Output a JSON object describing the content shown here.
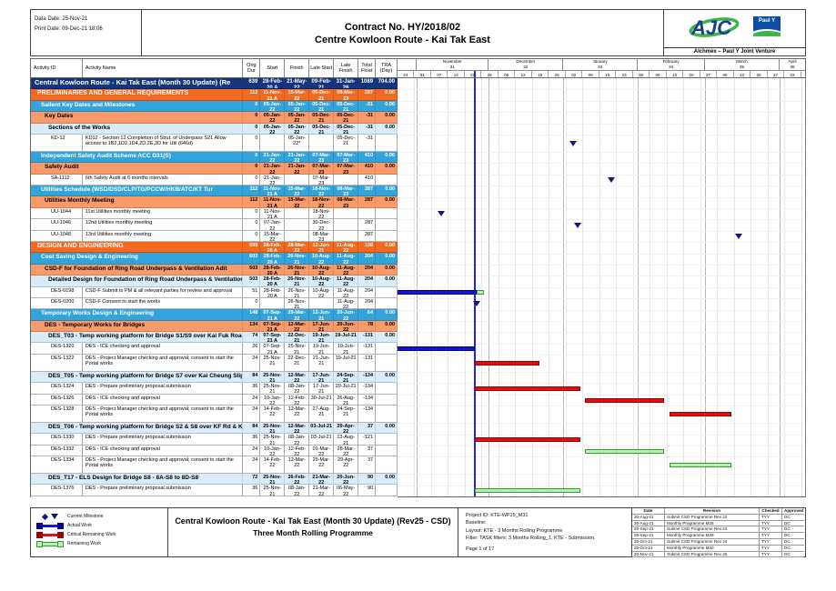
{
  "header": {
    "data_date": "Data Date: 25-Nov-21",
    "print_date": "Print Date: 09-Dec-21 18:06",
    "title1": "Contract No. HY/2018/02",
    "title2": "Centre Kowloon Route - Kai Tak East",
    "logo": {
      "alchmex": "AJC",
      "pauly": "Paul Y",
      "caption": "Alchmex – Paul Y Joint Venture"
    }
  },
  "table": {
    "columns": [
      "Activity ID",
      "Activity Name",
      "Orig Dur",
      "Start",
      "Finish",
      "Late Start",
      "Late Finish",
      "Total Float",
      "TRA (Day)"
    ],
    "rows": [
      {
        "level": "project",
        "id": "",
        "name": "Central Kowloon Route - Kai Tak East (Month 30 Update) (Re",
        "dur": "639",
        "start": "28-Feb-20 A",
        "finish": "21-May-22",
        "late_start": "09-Feb-21",
        "late_finish": "31-Jan-26",
        "float": "1089",
        "tra": "704.00"
      },
      {
        "level": "l1",
        "id": "",
        "name": "PRELIMINARIES AND GENERAL REQUIREMENTS",
        "dur": "112",
        "start": "11-Nov-21 A",
        "finish": "15-Mar-22",
        "late_start": "05-Dec-21",
        "late_finish": "08-Mar-23",
        "float": "287",
        "tra": "0.00"
      },
      {
        "level": "l2",
        "id": "",
        "name": "Salient Key Dates and Milestones",
        "dur": "0",
        "start": "05-Jan-22",
        "finish": "05-Jan-22",
        "late_start": "05-Dec-21",
        "late_finish": "05-Dec-21",
        "float": "-31",
        "tra": "0.00"
      },
      {
        "level": "l3",
        "id": "",
        "name": "Key Dates",
        "dur": "0",
        "start": "05-Jan-22",
        "finish": "05-Jan-22",
        "late_start": "05-Dec-21",
        "late_finish": "05-Dec-21",
        "float": "-31",
        "tra": "0.00"
      },
      {
        "level": "l4",
        "id": "",
        "name": "Sections of the Works",
        "dur": "0",
        "start": "05-Jan-22",
        "finish": "05-Jan-22",
        "late_start": "05-Dec-21",
        "late_finish": "05-Dec-21",
        "float": "-31",
        "tra": "0.00"
      },
      {
        "level": "task",
        "tall": true,
        "id": "KD-12",
        "name": "KD12 - Section 12 Completion of Strut. of Underpass S21 Allow access to 1B2,1D2,1D4,2D,2E,3D for Util (646d)",
        "dur": "0",
        "start": "",
        "finish": "05-Jan-22*",
        "late_start": "",
        "late_finish": "05-Dec-21",
        "float": "-31",
        "tra": ""
      },
      {
        "level": "l2",
        "id": "",
        "name": "Independent Safety Audit Scheme ACC D31(S)",
        "dur": "0",
        "start": "21-Jan-22",
        "finish": "21-Jan-22",
        "late_start": "07-Mar-23",
        "late_finish": "07-Mar-23",
        "float": "410",
        "tra": "0.00"
      },
      {
        "level": "l3",
        "id": "",
        "name": "Safety Audit",
        "dur": "0",
        "start": "21-Jan-22",
        "finish": "21-Jan-22",
        "late_start": "07-Mar-23",
        "late_finish": "07-Mar-23",
        "float": "410",
        "tra": "0.00"
      },
      {
        "level": "task",
        "id": "SA-1112",
        "name": "6th Safety Audit at 6 months intervals",
        "dur": "0",
        "start": "21-Jan-22",
        "finish": "",
        "late_start": "07-Mar-23",
        "late_finish": "",
        "float": "410",
        "tra": ""
      },
      {
        "level": "l2",
        "id": "",
        "name": "Utilities Schedule (WSD/DSD/CLP/TG/PCCW/HKB/ATC/KT Tur",
        "dur": "112",
        "start": "11-Nov-21 A",
        "finish": "15-Mar-22",
        "late_start": "18-Nov-22",
        "late_finish": "08-Mar-23",
        "float": "287",
        "tra": "0.00"
      },
      {
        "level": "l3",
        "id": "",
        "name": "Utilities Monthly Meeting",
        "dur": "112",
        "start": "11-Nov-21 A",
        "finish": "15-Mar-22",
        "late_start": "18-Nov-22",
        "late_finish": "08-Mar-23",
        "float": "287",
        "tra": "0.00"
      },
      {
        "level": "task",
        "id": "UU-1044",
        "name": "11st  Utilities monthly meeting",
        "dur": "0",
        "start": "11-Nov-21 A",
        "finish": "",
        "late_start": "18-Nov-22",
        "late_finish": "",
        "float": "",
        "tra": ""
      },
      {
        "level": "task",
        "id": "UU-1046",
        "name": "12nd Utilities monthly meeting",
        "dur": "0",
        "start": "07-Jan-22",
        "finish": "",
        "late_start": "30-Dec-22",
        "late_finish": "",
        "float": "287",
        "tra": ""
      },
      {
        "level": "task",
        "id": "UU-1048",
        "name": "13rd  Utilities monthly meeting",
        "dur": "0",
        "start": "15-Mar-22",
        "finish": "",
        "late_start": "08-Mar-23",
        "late_finish": "",
        "float": "287",
        "tra": ""
      },
      {
        "level": "l1",
        "id": "",
        "name": "DESIGN AND ENGINEERING",
        "dur": "599",
        "start": "28-Feb-20 A",
        "finish": "28-Mar-22",
        "late_start": "12-Jun-21",
        "late_finish": "11-Aug-22",
        "float": "108",
        "tra": "0.00"
      },
      {
        "level": "l2",
        "id": "",
        "name": "Cost Saving Design & Engineering",
        "dur": "603",
        "start": "28-Feb-20 A",
        "finish": "26-Nov-21",
        "late_start": "10-Aug-22",
        "late_finish": "11-Aug-22",
        "float": "204",
        "tra": "0.00"
      },
      {
        "level": "l3",
        "id": "",
        "name": "CSD-F for Foundation of Ring Road Underpass & Ventilation Adit",
        "dur": "503",
        "start": "28-Feb-20 A",
        "finish": "26-Nov-21",
        "late_start": "10-Aug-22",
        "late_finish": "11-Aug-22",
        "float": "204",
        "tra": "0.00"
      },
      {
        "level": "l4",
        "id": "",
        "name": "Detailed Design for Foundation of Ring Road Underpass & Ventilation Adit",
        "dur": "503",
        "start": "28-Feb-20 A",
        "finish": "26-Nov-21",
        "late_start": "10-Aug-22",
        "late_finish": "11-Aug-22",
        "float": "204",
        "tra": "0.00"
      },
      {
        "level": "task",
        "id": "DES-0198",
        "name": "CSD-F Submit to PM & all relevant parties for review and approval",
        "dur": "51",
        "start": "28-Feb-20 A",
        "finish": "26-Nov-21",
        "late_start": "10-Aug-22",
        "late_finish": "11-Aug-22",
        "float": "204",
        "tra": ""
      },
      {
        "level": "task",
        "id": "DES-0200",
        "name": "CSD-F Consent to start the works",
        "dur": "0",
        "start": "",
        "finish": "26-Nov-21",
        "late_start": "",
        "late_finish": "11-Aug-22",
        "float": "204",
        "tra": ""
      },
      {
        "level": "l2",
        "id": "",
        "name": "Temporary Works Design & Engineering",
        "dur": "148",
        "start": "07-Sep-21 A",
        "finish": "29-Mar-22",
        "late_start": "12-Jun-21",
        "late_finish": "20-Jun-22",
        "float": "64",
        "tra": "0.00"
      },
      {
        "level": "l3",
        "id": "",
        "name": "DES - Temporary Works for Bridges",
        "dur": "134",
        "start": "07-Sep-21 A",
        "finish": "12-Mar-22",
        "late_start": "17-Jun-21",
        "late_finish": "20-Jun-22",
        "float": "78",
        "tra": "0.00"
      },
      {
        "level": "l4",
        "id": "",
        "name": "DES_T03 - Temp working platform for Bridge S1/S9 over Kai Fuk Road",
        "dur": "74",
        "start": "07-Sep-21 A",
        "finish": "22-Dec-21",
        "late_start": "19-Jun-21",
        "late_finish": "19-Jul-21",
        "float": "-131",
        "tra": "0.00"
      },
      {
        "level": "task",
        "id": "DES-1320",
        "name": "DES - ICE checking and approval",
        "dur": "26",
        "start": "07-Sep-21 A",
        "finish": "25-Nov-21",
        "late_start": "19-Jun-21",
        "late_finish": "19-Jun-21",
        "float": "-131",
        "tra": ""
      },
      {
        "level": "task",
        "tall": true,
        "id": "DES-1322",
        "name": "DES - Project Manager checking and approval; consent to start the Portal works",
        "dur": "24",
        "start": "25-Nov-21",
        "finish": "22-Dec-21",
        "late_start": "21-Jun-21",
        "late_finish": "19-Jul-21",
        "float": "-131",
        "tra": ""
      },
      {
        "level": "l4",
        "id": "",
        "name": "DES_T05 - Temp working platform for Bridge S7 over Kai Cheung Slip Roa",
        "dur": "84",
        "start": "25-Nov-21",
        "finish": "12-Mar-22",
        "late_start": "17-Jun-21",
        "late_finish": "24-Sep-21",
        "float": "-134",
        "tra": "0.00"
      },
      {
        "level": "task",
        "id": "DES-1324",
        "name": "DES  - Prepare preliminary proposal submission",
        "dur": "36",
        "start": "25-Nov-21",
        "finish": "08-Jan-22",
        "late_start": "17-Jun-21",
        "late_finish": "29-Jul-21",
        "float": "-134",
        "tra": ""
      },
      {
        "level": "task",
        "id": "DES-1326",
        "name": "DES - ICE checking and approval",
        "dur": "24",
        "start": "10-Jan-22",
        "finish": "12-Feb-22",
        "late_start": "30-Jul-21",
        "late_finish": "26-Aug-21",
        "float": "-134",
        "tra": ""
      },
      {
        "level": "task",
        "tall": true,
        "id": "DES-1328",
        "name": "DES - Project Manager checking and approval; consent to start the Portal works",
        "dur": "24",
        "start": "14-Feb-22",
        "finish": "12-Mar-22",
        "late_start": "27-Aug-21",
        "late_finish": "24-Sep-21",
        "float": "-134",
        "tra": ""
      },
      {
        "level": "l4",
        "id": "",
        "name": "DES_T06 - Temp working platform for Bridge S2 & S8 over KF Rd & KC Rd",
        "dur": "84",
        "start": "25-Nov-21",
        "finish": "12-Mar-22",
        "late_start": "03-Jul-21",
        "late_finish": "29-Apr-22",
        "float": "37",
        "tra": "0.00"
      },
      {
        "level": "task",
        "id": "DES-1330",
        "name": "DES  - Prepare preliminary proposal submission",
        "dur": "36",
        "start": "25-Nov-21",
        "finish": "08-Jan-22",
        "late_start": "03-Jul-21",
        "late_finish": "13-Aug-21",
        "float": "-121",
        "tra": ""
      },
      {
        "level": "task",
        "id": "DES-1332",
        "name": "DES - ICE checking and approval",
        "dur": "24",
        "start": "10-Jan-22",
        "finish": "12-Feb-22",
        "late_start": "01-Mar-22",
        "late_finish": "28-Mar-22",
        "float": "37",
        "tra": ""
      },
      {
        "level": "task",
        "tall": true,
        "id": "DES-1334",
        "name": "DES - Project Manager checking and approval; consent to start the Portal works",
        "dur": "24",
        "start": "14-Feb-22",
        "finish": "12-Mar-22",
        "late_start": "29-Mar-22",
        "late_finish": "29-Apr-22",
        "float": "37",
        "tra": ""
      },
      {
        "level": "l4",
        "id": "",
        "name": "DES_T17 - ELS Design for Bridge S8 - 8A-S8 to 8D-S8",
        "dur": "72",
        "start": "25-Nov-21",
        "finish": "26-Feb-22",
        "late_start": "21-Mar-22",
        "late_finish": "20-Jun-22",
        "float": "90",
        "tra": "0.00"
      },
      {
        "level": "task",
        "id": "DES-1376",
        "name": "DES - Prepare preliminary proposal submission",
        "dur": "36",
        "start": "25-Nov-21",
        "finish": "08-Jan-22",
        "late_start": "21-Mar-22",
        "late_finish": "06-May-22",
        "float": "90",
        "tra": ""
      }
    ]
  },
  "timeline": {
    "months": [
      {
        "label": "",
        "num": "",
        "d0": 0,
        "d1": 8
      },
      {
        "label": "November",
        "num": "31",
        "d0": 8,
        "d1": 38
      },
      {
        "label": "December",
        "num": "32",
        "d0": 38,
        "d1": 69
      },
      {
        "label": "January",
        "num": "33",
        "d0": 69,
        "d1": 100
      },
      {
        "label": "February",
        "num": "34",
        "d0": 100,
        "d1": 128
      },
      {
        "label": "March",
        "num": "35",
        "d0": 128,
        "d1": 159
      },
      {
        "label": "April",
        "num": "36",
        "d0": 159,
        "d1": 170
      }
    ],
    "weeks": [
      {
        "d": 0,
        "label": "24"
      },
      {
        "d": 7,
        "label": "31"
      },
      {
        "d": 14,
        "label": "07"
      },
      {
        "d": 21,
        "label": "14"
      },
      {
        "d": 28,
        "label": "21"
      },
      {
        "d": 35,
        "label": "28"
      },
      {
        "d": 42,
        "label": "05"
      },
      {
        "d": 49,
        "label": "12"
      },
      {
        "d": 56,
        "label": "19"
      },
      {
        "d": 63,
        "label": "26"
      },
      {
        "d": 70,
        "label": "02"
      },
      {
        "d": 77,
        "label": "09"
      },
      {
        "d": 84,
        "label": "16"
      },
      {
        "d": 91,
        "label": "23"
      },
      {
        "d": 98,
        "label": "30"
      },
      {
        "d": 105,
        "label": "06"
      },
      {
        "d": 112,
        "label": "13"
      },
      {
        "d": 119,
        "label": "20"
      },
      {
        "d": 126,
        "label": "27"
      },
      {
        "d": 133,
        "label": "06"
      },
      {
        "d": 140,
        "label": "13"
      },
      {
        "d": 147,
        "label": "20"
      },
      {
        "d": 154,
        "label": "27"
      },
      {
        "d": 161,
        "label": "03"
      },
      {
        "d": 168,
        "label": "10"
      }
    ],
    "days_total": 170,
    "data_date_day": 32
  },
  "gantt": {
    "colors": {
      "actual": "#1515cf",
      "critical": "#e01010",
      "remaining_fill": "#b8f0b0",
      "remaining_border": "#2e9e2e",
      "milestone": "#15157e",
      "data_date": "#2626dd",
      "level_project": "#16337e",
      "level1": "#f26a21",
      "level2": "#33a3dc",
      "level3": "#f89a6a",
      "level4": "#d9ecf8"
    },
    "bars": [
      {
        "row": 5,
        "type": "milestone",
        "d": 73
      },
      {
        "row": 8,
        "type": "milestone",
        "d": 89
      },
      {
        "row": 11,
        "type": "milestone",
        "d": 18
      },
      {
        "row": 12,
        "type": "milestone",
        "d": 75
      },
      {
        "row": 13,
        "type": "milestone",
        "d": 142
      },
      {
        "row": 18,
        "type": "actual",
        "d0": -5,
        "d1": 33
      },
      {
        "row": 18,
        "type": "remaining",
        "d0": 33,
        "d1": 36
      },
      {
        "row": 19,
        "type": "milestone",
        "d": 33
      },
      {
        "row": 23,
        "type": "actual",
        "d0": -5,
        "d1": 32
      },
      {
        "row": 24,
        "type": "critical",
        "d0": 32,
        "d1": 59
      },
      {
        "row": 26,
        "type": "critical",
        "d0": 32,
        "d1": 76
      },
      {
        "row": 27,
        "type": "critical",
        "d0": 78,
        "d1": 111
      },
      {
        "row": 28,
        "type": "critical",
        "d0": 113,
        "d1": 139
      },
      {
        "row": 30,
        "type": "critical",
        "d0": 32,
        "d1": 76
      },
      {
        "row": 31,
        "type": "remaining",
        "d0": 78,
        "d1": 111
      },
      {
        "row": 32,
        "type": "remaining",
        "d0": 113,
        "d1": 139
      },
      {
        "row": 34,
        "type": "remaining",
        "d0": 32,
        "d1": 76
      }
    ]
  },
  "footer": {
    "legend": [
      "Current Milestone",
      "Actual Work",
      "Critical Remaining Work",
      "Remaining Work"
    ],
    "title1": "Central Kowloon Route - Kai Tak East (Month 30 Update) (Rev25 - CSD)",
    "title2": "Three Month Rolling Programme",
    "info_lines": [
      "Project ID: KTE-WP25_M31",
      "Baseline:",
      "Layout: KTE - 3 Months Rolling Programme",
      "Filter: TASK filters: 3 Months Rolling_1, KTE - Submission."
    ],
    "page": "Page 1 of 17",
    "revisions": {
      "columns": [
        "Date",
        "Revision",
        "Checked",
        "Approved"
      ],
      "rows": [
        [
          "20-Aug-21",
          "Submit CSD Programme Rev 22",
          "TYY",
          "DC"
        ],
        [
          "25-Aug-21",
          "Monthly Programme M28",
          "TYY",
          "DC"
        ],
        [
          "20-Sep-21",
          "Submit CSD Programme Rev 23",
          "TYY",
          "DC"
        ],
        [
          "25-Sep-21",
          "Monthly Programme M29",
          "TYY",
          "DC"
        ],
        [
          "20-Oct-21",
          "Submit CSD Programme Rev 24",
          "TYY",
          "DC"
        ],
        [
          "25-Oct-21",
          "Monthly Programme M30",
          "TYY",
          "DC"
        ],
        [
          "20-Nov-21",
          "Submit CSD Programme Rev 25",
          "TYY",
          "DC"
        ]
      ]
    }
  }
}
